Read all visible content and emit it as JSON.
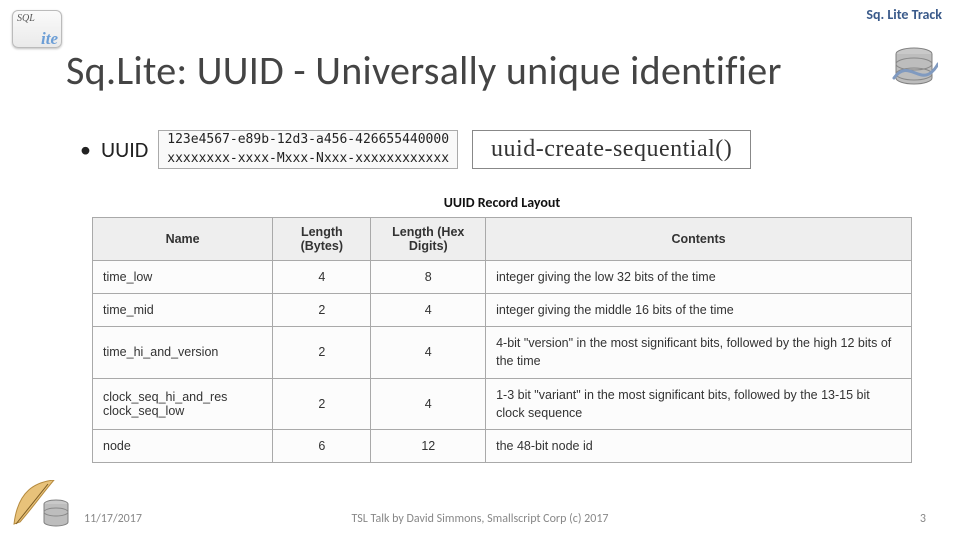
{
  "track_label": "Sq. Lite Track",
  "logo": {
    "top": "SQL",
    "bottom": "ite"
  },
  "title": "Sq.Lite: UUID - Universally unique identifier",
  "bullet_label": "UUID",
  "uuid_example": {
    "line1": "123e4567-e89b-12d3-a456-426655440000",
    "line2": "xxxxxxxx-xxxx-Mxxx-Nxxx-xxxxxxxxxxxx"
  },
  "fn_call": "uuid-create-sequential()",
  "table": {
    "caption": "UUID Record Layout",
    "columns": [
      "Name",
      "Length\n(Bytes)",
      "Length (Hex\nDigits)",
      "Contents"
    ],
    "col_widths_pct": [
      22,
      12,
      14,
      52
    ],
    "rows": [
      {
        "name": "time_low",
        "bytes": "4",
        "hex": "8",
        "contents": "integer giving the low 32 bits of the time",
        "two_line": false
      },
      {
        "name": "time_mid",
        "bytes": "2",
        "hex": "4",
        "contents": "integer giving the middle 16 bits of the time",
        "two_line": false
      },
      {
        "name": "time_hi_and_version",
        "bytes": "2",
        "hex": "4",
        "contents": "4-bit \"version\" in the most significant bits, followed by the high 12 bits of the time",
        "two_line": true
      },
      {
        "name": "clock_seq_hi_and_res\nclock_seq_low",
        "bytes": "2",
        "hex": "4",
        "contents": "1-3 bit \"variant\" in the most significant bits, followed by the 13-15 bit clock sequence",
        "two_line": true
      },
      {
        "name": "node",
        "bytes": "6",
        "hex": "12",
        "contents": "the 48-bit node id",
        "two_line": false
      }
    ]
  },
  "footer": {
    "date": "11/17/2017",
    "mid": "TSL Talk by David Simmons, Smallscript Corp (c) 2017",
    "page": "3"
  },
  "icons": {
    "database": "database-icon",
    "feather_db": "feather-db-icon"
  },
  "colors": {
    "track_label": "#3a5a8a",
    "title": "#444444",
    "table_border": "#a9a9a9",
    "table_header_bg": "#eeeeee",
    "table_cell_bg": "#fcfcfc",
    "footer_text": "#888888",
    "db_cyl": "#bdbdbd",
    "feather": "#e8c27a"
  }
}
